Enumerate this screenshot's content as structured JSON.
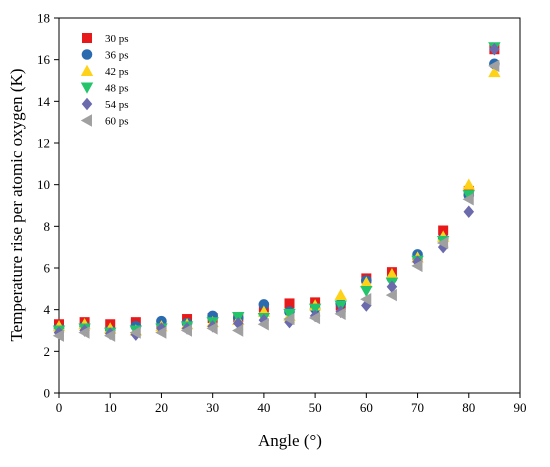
{
  "chart_data": {
    "type": "scatter",
    "title": "",
    "xlabel": "Angle (°)",
    "ylabel": "Temperature rise per atomic oxygen (K)",
    "xlim": [
      0,
      90
    ],
    "ylim": [
      0,
      18
    ],
    "xticks": [
      0,
      10,
      20,
      30,
      40,
      50,
      60,
      70,
      80,
      90
    ],
    "yticks": [
      0,
      2,
      4,
      6,
      8,
      10,
      12,
      14,
      16,
      18
    ],
    "grid": false,
    "legend_position": "top-left",
    "x": [
      0,
      5,
      10,
      15,
      20,
      25,
      30,
      35,
      40,
      45,
      50,
      55,
      60,
      65,
      70,
      75,
      80,
      85
    ],
    "series": [
      {
        "name": "30 ps",
        "marker": "square",
        "color": "#e8191b",
        "values": [
          3.3,
          3.4,
          3.3,
          3.4,
          3.3,
          3.55,
          3.6,
          3.65,
          4.1,
          4.3,
          4.35,
          4.2,
          5.5,
          5.8,
          6.5,
          7.8,
          9.7,
          16.5
        ]
      },
      {
        "name": "36 ps",
        "marker": "circle",
        "color": "#2a6bb0",
        "values": [
          3.1,
          3.2,
          3.0,
          3.2,
          3.45,
          3.35,
          3.7,
          3.6,
          4.25,
          3.9,
          4.05,
          4.3,
          5.4,
          5.5,
          6.65,
          7.4,
          9.5,
          15.8
        ]
      },
      {
        "name": "42 ps",
        "marker": "triangle-up",
        "color": "#ffd21a",
        "values": [
          3.2,
          3.3,
          3.1,
          3.0,
          3.2,
          3.3,
          3.4,
          3.5,
          3.9,
          3.7,
          4.2,
          4.7,
          5.3,
          5.7,
          6.5,
          7.5,
          10.0,
          15.4
        ]
      },
      {
        "name": "48 ps",
        "marker": "triangle-down",
        "color": "#23c46a",
        "values": [
          3.0,
          3.1,
          2.9,
          3.0,
          3.1,
          3.2,
          3.4,
          3.65,
          3.6,
          3.8,
          4.05,
          4.2,
          4.9,
          5.3,
          6.35,
          7.3,
          9.5,
          16.6
        ]
      },
      {
        "name": "54 ps",
        "marker": "diamond",
        "color": "#6a6aad",
        "values": [
          2.9,
          3.0,
          2.85,
          2.8,
          3.1,
          3.1,
          3.2,
          3.35,
          3.5,
          3.4,
          3.7,
          3.9,
          4.2,
          5.1,
          6.3,
          7.0,
          8.7,
          16.5
        ]
      },
      {
        "name": "60 ps",
        "marker": "triangle-left",
        "color": "#a0a0a0",
        "values": [
          2.75,
          2.9,
          2.75,
          2.9,
          2.9,
          3.0,
          3.1,
          3.0,
          3.3,
          3.55,
          3.6,
          3.8,
          4.5,
          4.7,
          6.1,
          7.2,
          9.3,
          15.7
        ]
      }
    ]
  }
}
